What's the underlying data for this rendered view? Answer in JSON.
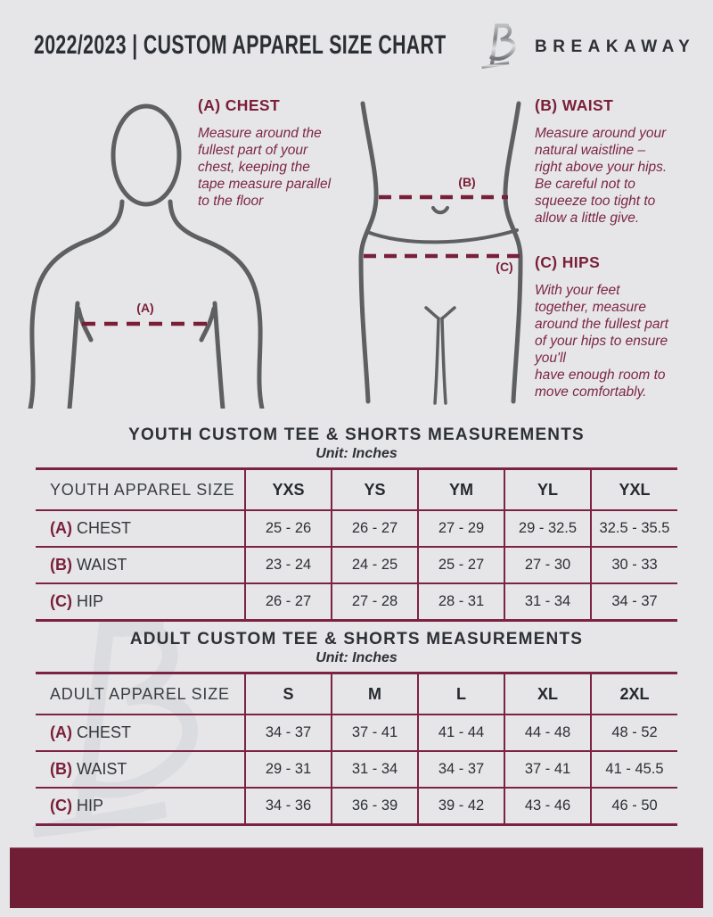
{
  "colors": {
    "background": "#e6e6e8",
    "accent_maroon": "#7a1f38",
    "table_border": "#7d2342",
    "footer_bar": "#701d36",
    "figure_gray": "#5d5f61",
    "dark_text": "#2c2f34",
    "watermark_gray": "#dbdce0"
  },
  "header": {
    "doc_title": "2022/2023  |  CUSTOM APPAREL SIZE CHART",
    "brand_name": "BREAKAWAY",
    "logo_icon": "breakaway-b-logo"
  },
  "guide": {
    "chest": {
      "heading": "(A) CHEST",
      "marker": "(A)",
      "body": "Measure around the\nfullest part of your\nchest, keeping the\ntape measure parallel\nto the floor"
    },
    "waist": {
      "heading": "(B) WAIST",
      "marker": "(B)",
      "body": "Measure around your\nnatural waistline –\nright above your hips.\nBe careful not to\nsqueeze too tight to\nallow a little give."
    },
    "hips": {
      "heading": "(C) HIPS",
      "marker": "(C)",
      "body": "With your feet\ntogether, measure\naround the fullest part\nof your hips to ensure\nyou'll\nhave enough room to\nmove comfortably."
    }
  },
  "youth_table": {
    "title": "YOUTH CUSTOM TEE & SHORTS MEASUREMENTS",
    "unit": "Unit: Inches",
    "header": [
      "YOUTH APPAREL SIZE",
      "YXS",
      "YS",
      "YM",
      "YL",
      "YXL"
    ],
    "rows": [
      {
        "prefix": "(A)",
        "label": "CHEST",
        "values": [
          "25 - 26",
          "26 - 27",
          "27 - 29",
          "29 - 32.5",
          "32.5 - 35.5"
        ]
      },
      {
        "prefix": "(B)",
        "label": "WAIST",
        "values": [
          "23 - 24",
          "24 - 25",
          "25 - 27",
          "27 - 30",
          "30 - 33"
        ]
      },
      {
        "prefix": "(C)",
        "label": "HIP",
        "values": [
          "26 - 27",
          "27 - 28",
          "28 - 31",
          "31 - 34",
          "34 - 37"
        ]
      }
    ]
  },
  "adult_table": {
    "title": "ADULT CUSTOM TEE & SHORTS MEASUREMENTS",
    "unit": "Unit: Inches",
    "header": [
      "ADULT APPAREL SIZE",
      "S",
      "M",
      "L",
      "XL",
      "2XL"
    ],
    "rows": [
      {
        "prefix": "(A)",
        "label": "CHEST",
        "values": [
          "34 - 37",
          "37 - 41",
          "41 - 44",
          "44 - 48",
          "48 - 52"
        ]
      },
      {
        "prefix": "(B)",
        "label": "WAIST",
        "values": [
          "29 - 31",
          "31 - 34",
          "34 - 37",
          "37 - 41",
          "41 - 45.5"
        ]
      },
      {
        "prefix": "(C)",
        "label": "HIP",
        "values": [
          "34 - 36",
          "36 - 39",
          "39 - 42",
          "43 - 46",
          "46 - 50"
        ]
      }
    ]
  }
}
